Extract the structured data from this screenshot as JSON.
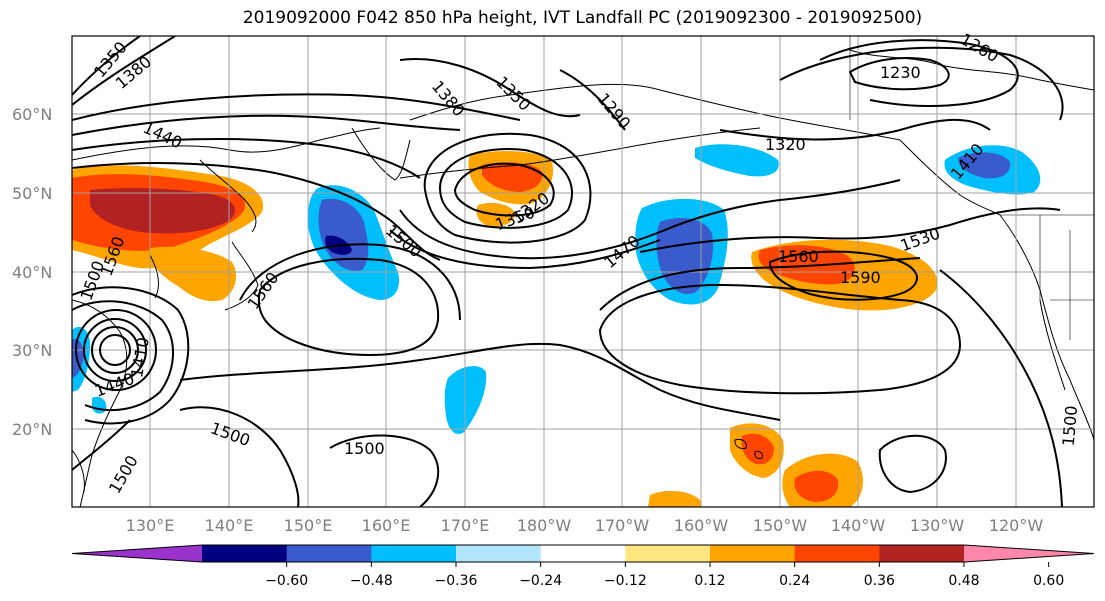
{
  "title": "2019092000 F042 850 hPa height, IVT Landfall PC (2019092300 - 2019092500)",
  "lon_labels": [
    "130°E",
    "140°E",
    "150°E",
    "160°E",
    "170°E",
    "180°W",
    "170°W",
    "160°W",
    "150°W",
    "140°W",
    "130°W",
    "120°W"
  ],
  "lat_labels": [
    "60°N",
    "50°N",
    "40°N",
    "30°N",
    "20°N"
  ],
  "colorbar": {
    "ticks": [
      "−0.60",
      "−0.48",
      "−0.36",
      "−0.24",
      "−0.12",
      "0.12",
      "0.24",
      "0.36",
      "0.48",
      "0.60"
    ],
    "colors": [
      "#9933cc",
      "#000080",
      "#3a5bcc",
      "#00bfff",
      "#b3e5ff",
      "#ffffff",
      "#ffe680",
      "#ffa500",
      "#ff4500",
      "#b22222",
      "#ff88aa"
    ]
  },
  "contour_labels": {
    "c1350a": "1350",
    "c1380a": "1380",
    "c1440a": "1440",
    "c1380b": "1380",
    "c1350b": "1350",
    "c1290": "1290",
    "c1230": "1230",
    "c1260": "1260",
    "c1320a": "1320",
    "c1410": "1410",
    "c1320b": "1320",
    "c1350c": "1350",
    "c1500a": "1500",
    "c1470": "1470",
    "c1530": "1530",
    "c1560a": "1560",
    "c1590": "1590",
    "c1560b": "1560",
    "c1560c": "1560",
    "c1500b": "1500",
    "c1500c": "1500",
    "c1500d": "1500",
    "c1410b": "1410",
    "c1440b": "1440",
    "c1500e": "1500",
    "c1500f": "1500"
  }
}
